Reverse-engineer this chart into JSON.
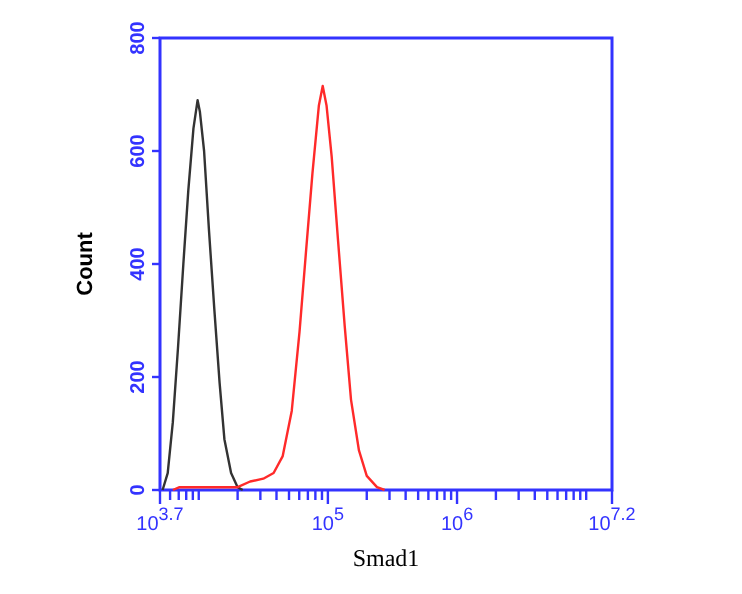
{
  "chart_data": {
    "type": "line",
    "log": "x",
    "xlabel": "Smad1",
    "ylabel": "Count",
    "xlim": [
      5012,
      15848932
    ],
    "ylim": [
      0,
      800
    ],
    "yticks": [
      0,
      200,
      400,
      600,
      800
    ],
    "xticks": [
      {
        "value": 5012,
        "label": "10$^{3.7}$"
      },
      {
        "value": 6000,
        "label": null
      },
      {
        "value": 7000,
        "label": null
      },
      {
        "value": 8000,
        "label": null
      },
      {
        "value": 9000,
        "label": null
      },
      {
        "value": 10000,
        "label": null
      },
      {
        "value": 20000,
        "label": null
      },
      {
        "value": 30000,
        "label": null
      },
      {
        "value": 40000,
        "label": null
      },
      {
        "value": 50000,
        "label": null
      },
      {
        "value": 60000,
        "label": null
      },
      {
        "value": 70000,
        "label": null
      },
      {
        "value": 80000,
        "label": null
      },
      {
        "value": 90000,
        "label": null
      },
      {
        "value": 100000,
        "label": "10$^{5}$"
      },
      {
        "value": 200000,
        "label": null
      },
      {
        "value": 300000,
        "label": null
      },
      {
        "value": 400000,
        "label": null
      },
      {
        "value": 500000,
        "label": null
      },
      {
        "value": 600000,
        "label": null
      },
      {
        "value": 700000,
        "label": null
      },
      {
        "value": 800000,
        "label": null
      },
      {
        "value": 900000,
        "label": null
      },
      {
        "value": 1000000,
        "label": "10$^{6}$"
      },
      {
        "value": 2000000,
        "label": null
      },
      {
        "value": 3000000,
        "label": null
      },
      {
        "value": 4000000,
        "label": null
      },
      {
        "value": 5000000,
        "label": null
      },
      {
        "value": 6000000,
        "label": null
      },
      {
        "value": 7000000,
        "label": null
      },
      {
        "value": 8000000,
        "label": null
      },
      {
        "value": 9000000,
        "label": null
      },
      {
        "value": 10000000,
        "label": null
      },
      {
        "value": 15848932,
        "label": "10$^{7.2}$"
      }
    ],
    "series": [
      {
        "color": "#333333",
        "x": [
          5250,
          5750,
          6300,
          6900,
          7600,
          8300,
          9100,
          9800,
          10200,
          11000,
          12000,
          13200,
          14500,
          15800,
          17800,
          20000,
          21900
        ],
        "values": [
          0,
          30,
          120,
          250,
          400,
          530,
          640,
          690,
          670,
          600,
          460,
          320,
          190,
          90,
          30,
          5,
          0
        ]
      },
      {
        "color": "#ff2a2a",
        "x": [
          6300,
          7100,
          20000,
          25000,
          31600,
          38000,
          44700,
          52500,
          60300,
          67600,
          75900,
          85100,
          91200,
          97700,
          107000,
          120000,
          135000,
          151000,
          174000,
          200000,
          240000,
          275000
        ],
        "values": [
          0,
          5,
          5,
          15,
          20,
          30,
          60,
          140,
          280,
          420,
          560,
          680,
          715,
          680,
          590,
          440,
          290,
          160,
          70,
          25,
          5,
          0
        ]
      }
    ]
  }
}
